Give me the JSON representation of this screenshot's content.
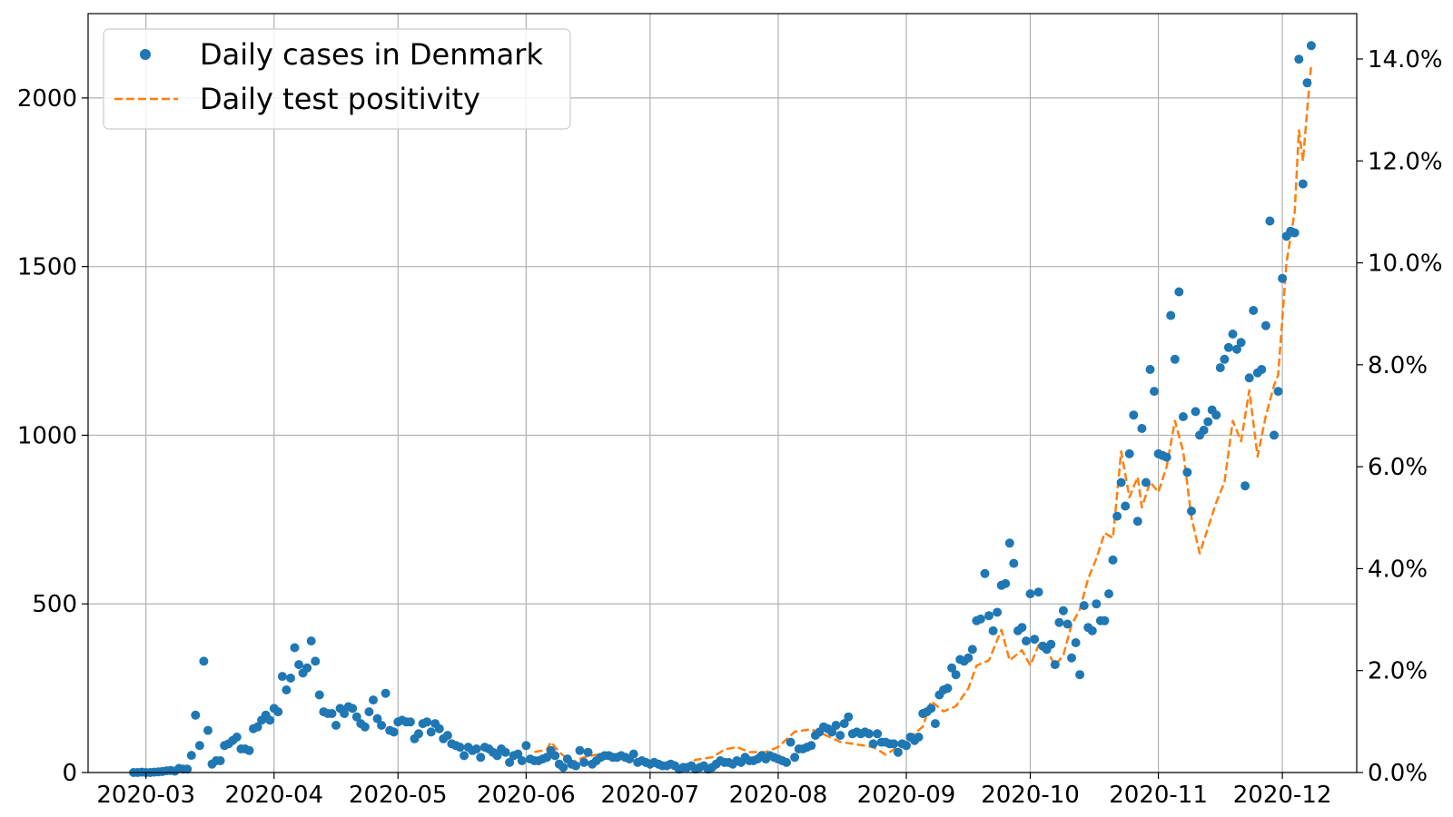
{
  "chart_data": {
    "type": "scatter",
    "title": "",
    "xlabel": "",
    "ylabel": "",
    "grid": true,
    "legend_position": "top-left",
    "x_range": [
      "2020-02-16",
      "2020-12-19"
    ],
    "y_left_range": [
      0,
      2250
    ],
    "y_right_range": [
      0,
      0.1489
    ],
    "x_ticks": [
      "2020-03-01",
      "2020-04-01",
      "2020-05-01",
      "2020-06-01",
      "2020-07-01",
      "2020-08-01",
      "2020-09-01",
      "2020-10-01",
      "2020-11-01",
      "2020-12-01"
    ],
    "x_tick_labels": [
      "2020-03",
      "2020-04",
      "2020-05",
      "2020-06",
      "2020-07",
      "2020-08",
      "2020-09",
      "2020-10",
      "2020-11",
      "2020-12"
    ],
    "y_left_ticks": [
      0,
      500,
      1000,
      1500,
      2000
    ],
    "y_left_tick_labels": [
      "0",
      "500",
      "1000",
      "1500",
      "2000"
    ],
    "y_right_ticks": [
      0,
      0.02,
      0.04,
      0.06,
      0.08,
      0.1,
      0.12,
      0.14
    ],
    "y_right_tick_labels": [
      "0.0%",
      "2.0%",
      "4.0%",
      "6.0%",
      "8.0%",
      "10.0%",
      "12.0%",
      "14.0%"
    ],
    "series": [
      {
        "name": "Daily cases in Denmark",
        "marker": "dot",
        "color": "#1f77b4",
        "axis": "left",
        "start_date": "2020-02-27",
        "values": [
          0,
          0,
          1,
          0,
          0,
          1,
          2,
          3,
          5,
          6,
          4,
          12,
          10,
          10,
          51,
          170,
          80,
          330,
          125,
          25,
          35,
          35,
          80,
          85,
          95,
          105,
          70,
          70,
          65,
          130,
          135,
          155,
          170,
          155,
          190,
          180,
          285,
          245,
          280,
          370,
          320,
          295,
          310,
          390,
          330,
          230,
          180,
          175,
          175,
          140,
          190,
          175,
          195,
          190,
          165,
          145,
          135,
          180,
          215,
          160,
          140,
          235,
          125,
          120,
          150,
          155,
          150,
          150,
          100,
          115,
          145,
          150,
          120,
          145,
          130,
          100,
          110,
          85,
          80,
          75,
          50,
          75,
          65,
          70,
          45,
          75,
          70,
          60,
          50,
          70,
          60,
          30,
          50,
          55,
          35,
          80,
          40,
          35,
          35,
          40,
          45,
          65,
          50,
          25,
          15,
          40,
          25,
          20,
          65,
          30,
          60,
          25,
          35,
          45,
          50,
          50,
          45,
          45,
          50,
          45,
          40,
          55,
          30,
          35,
          30,
          25,
          30,
          25,
          20,
          20,
          25,
          20,
          10,
          15,
          15,
          20,
          10,
          15,
          20,
          10,
          15,
          25,
          35,
          30,
          30,
          25,
          35,
          30,
          45,
          35,
          35,
          40,
          50,
          40,
          50,
          45,
          40,
          35,
          30,
          90,
          45,
          70,
          70,
          75,
          80,
          110,
          120,
          135,
          130,
          120,
          140,
          110,
          145,
          165,
          115,
          120,
          115,
          120,
          115,
          85,
          115,
          90,
          90,
          85,
          85,
          60,
          85,
          80,
          105,
          95,
          105,
          175,
          180,
          190,
          145,
          230,
          245,
          250,
          310,
          290,
          335,
          330,
          340,
          365,
          450,
          455,
          590,
          465,
          420,
          475,
          555,
          560,
          680,
          620,
          420,
          430,
          390,
          530,
          395,
          535,
          375,
          365,
          380,
          320,
          445,
          480,
          440,
          340,
          385,
          290,
          495,
          430,
          420,
          500,
          450,
          450,
          530,
          630,
          760,
          860,
          790,
          945,
          1060,
          745,
          1020,
          860,
          1195,
          1130,
          945,
          940,
          935,
          1355,
          1225,
          1425,
          1055,
          890,
          775,
          1070,
          1000,
          1015,
          1040,
          1075,
          1060,
          1200,
          1225,
          1260,
          1300,
          1255,
          1275,
          850,
          1170,
          1370,
          1185,
          1195,
          1325,
          1635,
          1000,
          1130,
          1465,
          1590,
          1605,
          1600,
          2115,
          1745,
          2045,
          2155
        ]
      },
      {
        "name": "Daily test positivity",
        "marker": "dashed-line",
        "color": "#ff7f0e",
        "axis": "right",
        "points": [
          [
            "2020-06-03",
            0.004
          ],
          [
            "2020-06-06",
            0.0045
          ],
          [
            "2020-06-07",
            0.006
          ],
          [
            "2020-06-09",
            0.004
          ],
          [
            "2020-06-12",
            0.002
          ],
          [
            "2020-06-15",
            0.003
          ],
          [
            "2020-06-18",
            0.0035
          ],
          [
            "2020-06-21",
            0.003
          ],
          [
            "2020-06-25",
            0.003
          ],
          [
            "2020-06-30",
            0.002
          ],
          [
            "2020-07-05",
            0.0015
          ],
          [
            "2020-07-09",
            0.001
          ],
          [
            "2020-07-12",
            0.0025
          ],
          [
            "2020-07-16",
            0.003
          ],
          [
            "2020-07-19",
            0.0045
          ],
          [
            "2020-07-22",
            0.005
          ],
          [
            "2020-07-25",
            0.004
          ],
          [
            "2020-07-29",
            0.004
          ],
          [
            "2020-08-01",
            0.005
          ],
          [
            "2020-08-05",
            0.008
          ],
          [
            "2020-08-09",
            0.0085
          ],
          [
            "2020-08-12",
            0.0075
          ],
          [
            "2020-08-16",
            0.006
          ],
          [
            "2020-08-20",
            0.0055
          ],
          [
            "2020-08-24",
            0.005
          ],
          [
            "2020-08-27",
            0.0035
          ],
          [
            "2020-08-30",
            0.005
          ],
          [
            "2020-09-02",
            0.007
          ],
          [
            "2020-09-05",
            0.009
          ],
          [
            "2020-09-07",
            0.014
          ],
          [
            "2020-09-10",
            0.012
          ],
          [
            "2020-09-13",
            0.013
          ],
          [
            "2020-09-16",
            0.0165
          ],
          [
            "2020-09-18",
            0.021
          ],
          [
            "2020-09-21",
            0.022
          ],
          [
            "2020-09-24",
            0.028
          ],
          [
            "2020-09-26",
            0.022
          ],
          [
            "2020-09-29",
            0.024
          ],
          [
            "2020-10-01",
            0.021
          ],
          [
            "2020-10-03",
            0.025
          ],
          [
            "2020-10-05",
            0.024
          ],
          [
            "2020-10-07",
            0.021
          ],
          [
            "2020-10-09",
            0.023
          ],
          [
            "2020-10-11",
            0.029
          ],
          [
            "2020-10-13",
            0.032
          ],
          [
            "2020-10-15",
            0.038
          ],
          [
            "2020-10-17",
            0.042
          ],
          [
            "2020-10-19",
            0.047
          ],
          [
            "2020-10-21",
            0.046
          ],
          [
            "2020-10-23",
            0.063
          ],
          [
            "2020-10-25",
            0.054
          ],
          [
            "2020-10-27",
            0.058
          ],
          [
            "2020-10-28",
            0.052
          ],
          [
            "2020-10-30",
            0.057
          ],
          [
            "2020-11-01",
            0.055
          ],
          [
            "2020-11-03",
            0.06
          ],
          [
            "2020-11-05",
            0.069
          ],
          [
            "2020-11-07",
            0.063
          ],
          [
            "2020-11-09",
            0.05
          ],
          [
            "2020-11-11",
            0.043
          ],
          [
            "2020-11-13",
            0.048
          ],
          [
            "2020-11-15",
            0.053
          ],
          [
            "2020-11-17",
            0.057
          ],
          [
            "2020-11-19",
            0.069
          ],
          [
            "2020-11-21",
            0.065
          ],
          [
            "2020-11-23",
            0.075
          ],
          [
            "2020-11-25",
            0.062
          ],
          [
            "2020-11-27",
            0.07
          ],
          [
            "2020-11-29",
            0.076
          ],
          [
            "2020-11-30",
            0.078
          ],
          [
            "2020-12-02",
            0.1
          ],
          [
            "2020-12-04",
            0.11
          ],
          [
            "2020-12-05",
            0.126
          ],
          [
            "2020-12-06",
            0.12
          ],
          [
            "2020-12-07",
            0.13
          ],
          [
            "2020-12-08",
            0.139
          ]
        ]
      }
    ]
  }
}
